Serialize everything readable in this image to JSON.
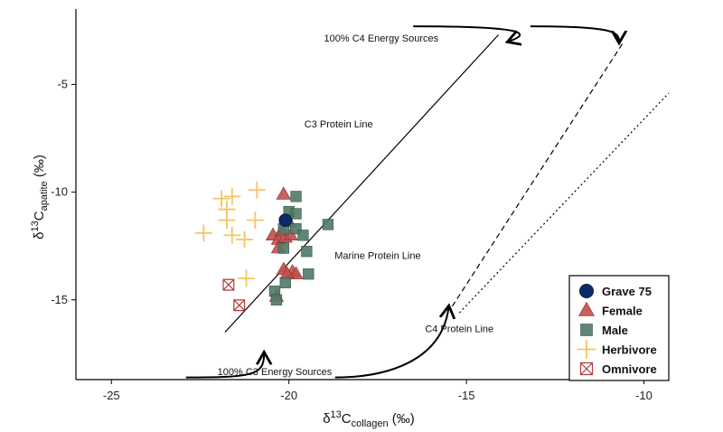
{
  "chart_data": {
    "type": "scatter",
    "title": "",
    "xlabel": {
      "prefix": "δ",
      "sup": "13",
      "main": "C",
      "sub": "collagen",
      "unit": " (‰)"
    },
    "ylabel": {
      "prefix": "δ",
      "sup": "13",
      "main": "C",
      "sub": "apatite",
      "unit": " (‰)"
    },
    "xlim": [
      -26,
      -9.3
    ],
    "ylim": [
      -18.7,
      -1.5
    ],
    "x_ticks": [
      -25,
      -20,
      -15,
      -10
    ],
    "y_ticks": [
      -5,
      -10,
      -15
    ],
    "grid": false,
    "legend_position": "bottom-right",
    "colors": {
      "grave75": "#0d2b6b",
      "female": "#c0504d",
      "male": "#4f7a66",
      "herbivore": "#f5c466",
      "omnivore": "#b03a3a"
    },
    "series": [
      {
        "name": "Grave 75",
        "marker": "circle",
        "color": "#0d2b6b",
        "points": [
          [
            -20.1,
            -11.3
          ]
        ]
      },
      {
        "name": "Female",
        "marker": "triangle",
        "color": "#c0504d",
        "points": [
          [
            -20.15,
            -10.1
          ],
          [
            -20.45,
            -12.0
          ],
          [
            -20.3,
            -12.2
          ],
          [
            -20.1,
            -12.1
          ],
          [
            -20.2,
            -11.8
          ],
          [
            -19.95,
            -12.0
          ],
          [
            -20.0,
            -11.4
          ],
          [
            -20.3,
            -12.6
          ],
          [
            -20.15,
            -13.6
          ],
          [
            -19.9,
            -13.7
          ],
          [
            -19.8,
            -13.8
          ],
          [
            -20.05,
            -13.8
          ],
          [
            -20.35,
            -14.85
          ]
        ]
      },
      {
        "name": "Male",
        "marker": "square",
        "color": "#4f7a66",
        "points": [
          [
            -19.8,
            -10.2
          ],
          [
            -20.0,
            -10.9
          ],
          [
            -19.8,
            -11.0
          ],
          [
            -20.05,
            -11.3
          ],
          [
            -20.15,
            -11.7
          ],
          [
            -19.8,
            -11.7
          ],
          [
            -19.6,
            -12.0
          ],
          [
            -20.15,
            -12.6
          ],
          [
            -19.5,
            -12.75
          ],
          [
            -20.1,
            -14.2
          ],
          [
            -20.4,
            -14.6
          ],
          [
            -20.35,
            -15.0
          ],
          [
            -19.45,
            -13.8
          ],
          [
            -18.9,
            -11.5
          ]
        ]
      },
      {
        "name": "Herbivore",
        "marker": "plus",
        "color": "#f5c466",
        "points": [
          [
            -21.9,
            -10.3
          ],
          [
            -21.6,
            -10.2
          ],
          [
            -21.75,
            -10.8
          ],
          [
            -20.9,
            -9.9
          ],
          [
            -21.75,
            -11.3
          ],
          [
            -20.95,
            -11.3
          ],
          [
            -21.6,
            -12.0
          ],
          [
            -21.25,
            -12.2
          ],
          [
            -22.4,
            -11.9
          ],
          [
            -21.2,
            -14.0
          ]
        ]
      },
      {
        "name": "Omnivore",
        "marker": "boxx",
        "color": "#b03a3a",
        "points": [
          [
            -21.7,
            -14.3
          ],
          [
            -21.4,
            -15.25
          ]
        ]
      }
    ],
    "lines": [
      {
        "name": "C3 Protein Line",
        "style": "solid",
        "from": [
          -21.8,
          -16.5
        ],
        "to": [
          -14.1,
          -2.7
        ]
      },
      {
        "name": "Marine Protein Line",
        "style": "dashed",
        "from": [
          -15.4,
          -15.3
        ],
        "to": [
          -10.6,
          -3.1
        ]
      },
      {
        "name": "C4 Protein Line",
        "style": "dotted",
        "from": [
          -15.2,
          -15.6
        ],
        "to": [
          -9.3,
          -5.4
        ]
      }
    ],
    "annotations": [
      {
        "text": "100% C4 Energy Sources",
        "x": -17.4,
        "y": -3.0
      },
      {
        "text": "C3 Protein Line",
        "x": -18.6,
        "y": -7.0
      },
      {
        "text": "Marine Protein Line",
        "x": -17.5,
        "y": -13.1
      },
      {
        "text": "C4 Protein Line",
        "x": -15.2,
        "y": -16.5
      },
      {
        "text": "100% C3 Energy Sources",
        "x": -20.4,
        "y": -18.5
      }
    ],
    "arrows": [
      {
        "name": "c4-arrow-left",
        "from": [
          -16.5,
          -2.3
        ],
        "to": [
          -13.8,
          -3.0
        ],
        "path": [
          [
            -16.5,
            -2.3
          ],
          [
            -13.2,
            -2.3
          ],
          [
            -13.2,
            -2.65
          ],
          [
            -13.8,
            -3.0
          ]
        ]
      },
      {
        "name": "c4-arrow-right",
        "from": [
          -13.2,
          -2.3
        ],
        "to": [
          -10.7,
          -3.0
        ],
        "path": [
          [
            -13.2,
            -2.3
          ],
          [
            -10.9,
            -2.3
          ],
          [
            -10.7,
            -2.55
          ],
          [
            -10.7,
            -3.0
          ]
        ]
      },
      {
        "name": "c3-arrow-up",
        "from": [
          -22.9,
          -18.6
        ],
        "to": [
          -20.7,
          -17.5
        ],
        "path": [
          [
            -22.9,
            -18.6
          ],
          [
            -21.0,
            -18.6
          ],
          [
            -20.7,
            -18.5
          ],
          [
            -20.7,
            -17.5
          ]
        ]
      },
      {
        "name": "c3-arrow-right",
        "from": [
          -18.7,
          -18.6
        ],
        "to": [
          -15.5,
          -15.35
        ],
        "path": [
          [
            -18.7,
            -18.6
          ],
          [
            -17.3,
            -18.6
          ],
          [
            -15.7,
            -17.9
          ],
          [
            -15.5,
            -15.35
          ]
        ]
      }
    ]
  }
}
